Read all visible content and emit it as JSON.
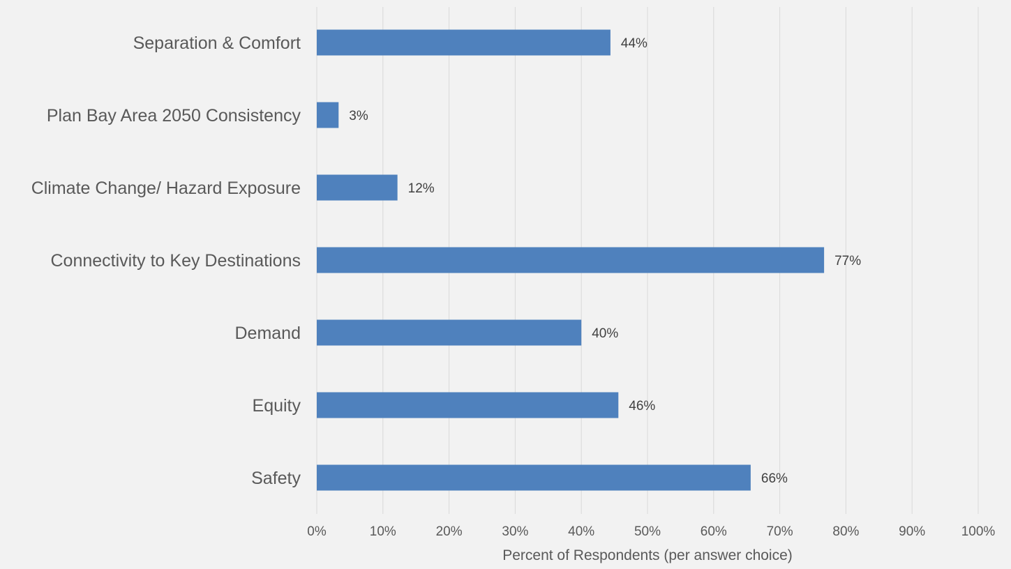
{
  "chart_data": {
    "type": "bar",
    "orientation": "horizontal",
    "categories": [
      "Separation & Comfort",
      "Plan Bay Area 2050 Consistency",
      "Climate Change/ Hazard Exposure",
      "Connectivity to Key Destinations",
      "Demand",
      "Equity",
      "Safety"
    ],
    "values": [
      44.4,
      3.3,
      12.2,
      76.7,
      40.0,
      45.6,
      65.6
    ],
    "data_labels": [
      "44%",
      "3%",
      "12%",
      "77%",
      "40%",
      "46%",
      "66%"
    ],
    "x_ticks": [
      "0%",
      "10%",
      "20%",
      "30%",
      "40%",
      "50%",
      "60%",
      "70%",
      "80%",
      "90%",
      "100%"
    ],
    "xlabel": "Percent of Respondents (per answer choice)",
    "ylabel": "",
    "title": "",
    "xlim": [
      0,
      100
    ],
    "grid": "vertical",
    "legend": "none",
    "colors": {
      "bar": "#4f81bd",
      "grid": "#d9d9d9",
      "category_text": "#595959",
      "tick_text": "#595959",
      "label_text": "#404040",
      "background": "#f2f2f2"
    }
  }
}
